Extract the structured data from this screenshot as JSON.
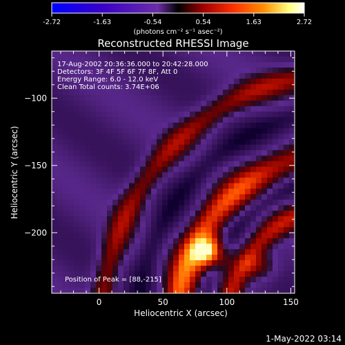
{
  "chart_data": {
    "type": "heatmap",
    "title": "Reconstructed RHESSI Image",
    "colorbar": {
      "min": -2.72,
      "max": 2.72,
      "ticks": [
        "-2.72",
        "-1.63",
        "-0.54",
        "0.54",
        "1.63",
        "2.72"
      ],
      "unit_label": "(photons cm⁻² s⁻¹ asec⁻²)",
      "colors": [
        "#0000ff",
        "#3a00c8",
        "#6b2da8",
        "#000000",
        "#a00000",
        "#ff3000",
        "#ff9000",
        "#ffff80",
        "#ffffff"
      ]
    },
    "xlabel": "Heliocentric X (arcsec)",
    "ylabel": "Heliocentric Y (arcsec)",
    "xlim": [
      -37,
      153
    ],
    "ylim": [
      -245,
      -65
    ],
    "x_ticks": [
      0,
      50,
      100,
      150
    ],
    "y_ticks": [
      -100,
      -150,
      -200
    ],
    "annotations": [
      "17-Aug-2002 20:36:36.000 to 20:42:28.000",
      "Detectors: 3F 4F 5F 6F 7F 8F, Att 0",
      "Energy Range: 6.0 - 12.0 keV",
      "Clean     Total counts: 3.74E+06"
    ],
    "peak_label": "Position of Peak = [88,-215]",
    "peak": {
      "x": 88,
      "y": -215
    }
  },
  "footer": {
    "date": "1-May-2022 03:14"
  }
}
